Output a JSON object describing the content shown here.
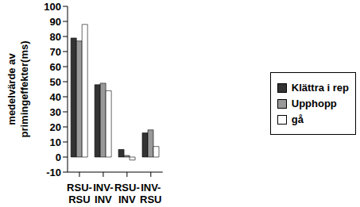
{
  "chart_data": {
    "type": "bar",
    "y_label": "medelvärde av primingeffekter(ms)",
    "categories": [
      "RSU-RSU",
      "INV-INV",
      "RSU-INV",
      "INV-RSU"
    ],
    "series": [
      {
        "name": "Klättra i rep",
        "color": "#333333",
        "values": [
          79,
          48,
          5,
          16
        ]
      },
      {
        "name": "Upphopp",
        "color": "#999999",
        "values": [
          77,
          49,
          1,
          18
        ]
      },
      {
        "name": "gå",
        "color": "#ffffff",
        "values": [
          88,
          44,
          -2,
          7
        ]
      }
    ],
    "ylim": [
      -10,
      100
    ],
    "yticks": [
      -10,
      0,
      10,
      20,
      30,
      40,
      50,
      60,
      70,
      80,
      90,
      100
    ],
    "grid": false,
    "legend": "right"
  }
}
